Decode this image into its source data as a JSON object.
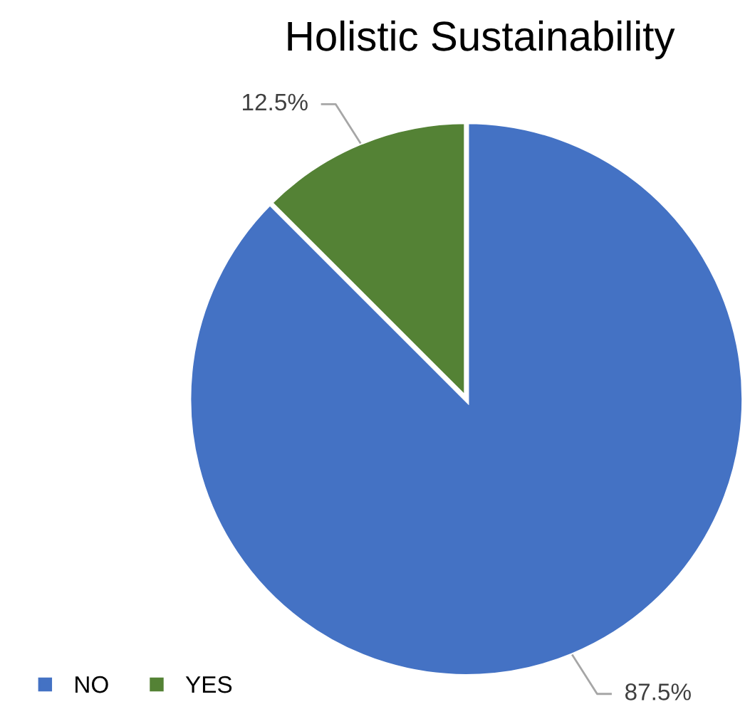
{
  "chart_data": {
    "type": "pie",
    "title": "Holistic Sustainability",
    "categories": [
      "NO",
      "YES"
    ],
    "values": [
      87.5,
      12.5
    ],
    "colors": [
      "#4472c4",
      "#548235"
    ],
    "value_labels": [
      "87.5%",
      "12.5%"
    ],
    "legend": "bottom left"
  }
}
